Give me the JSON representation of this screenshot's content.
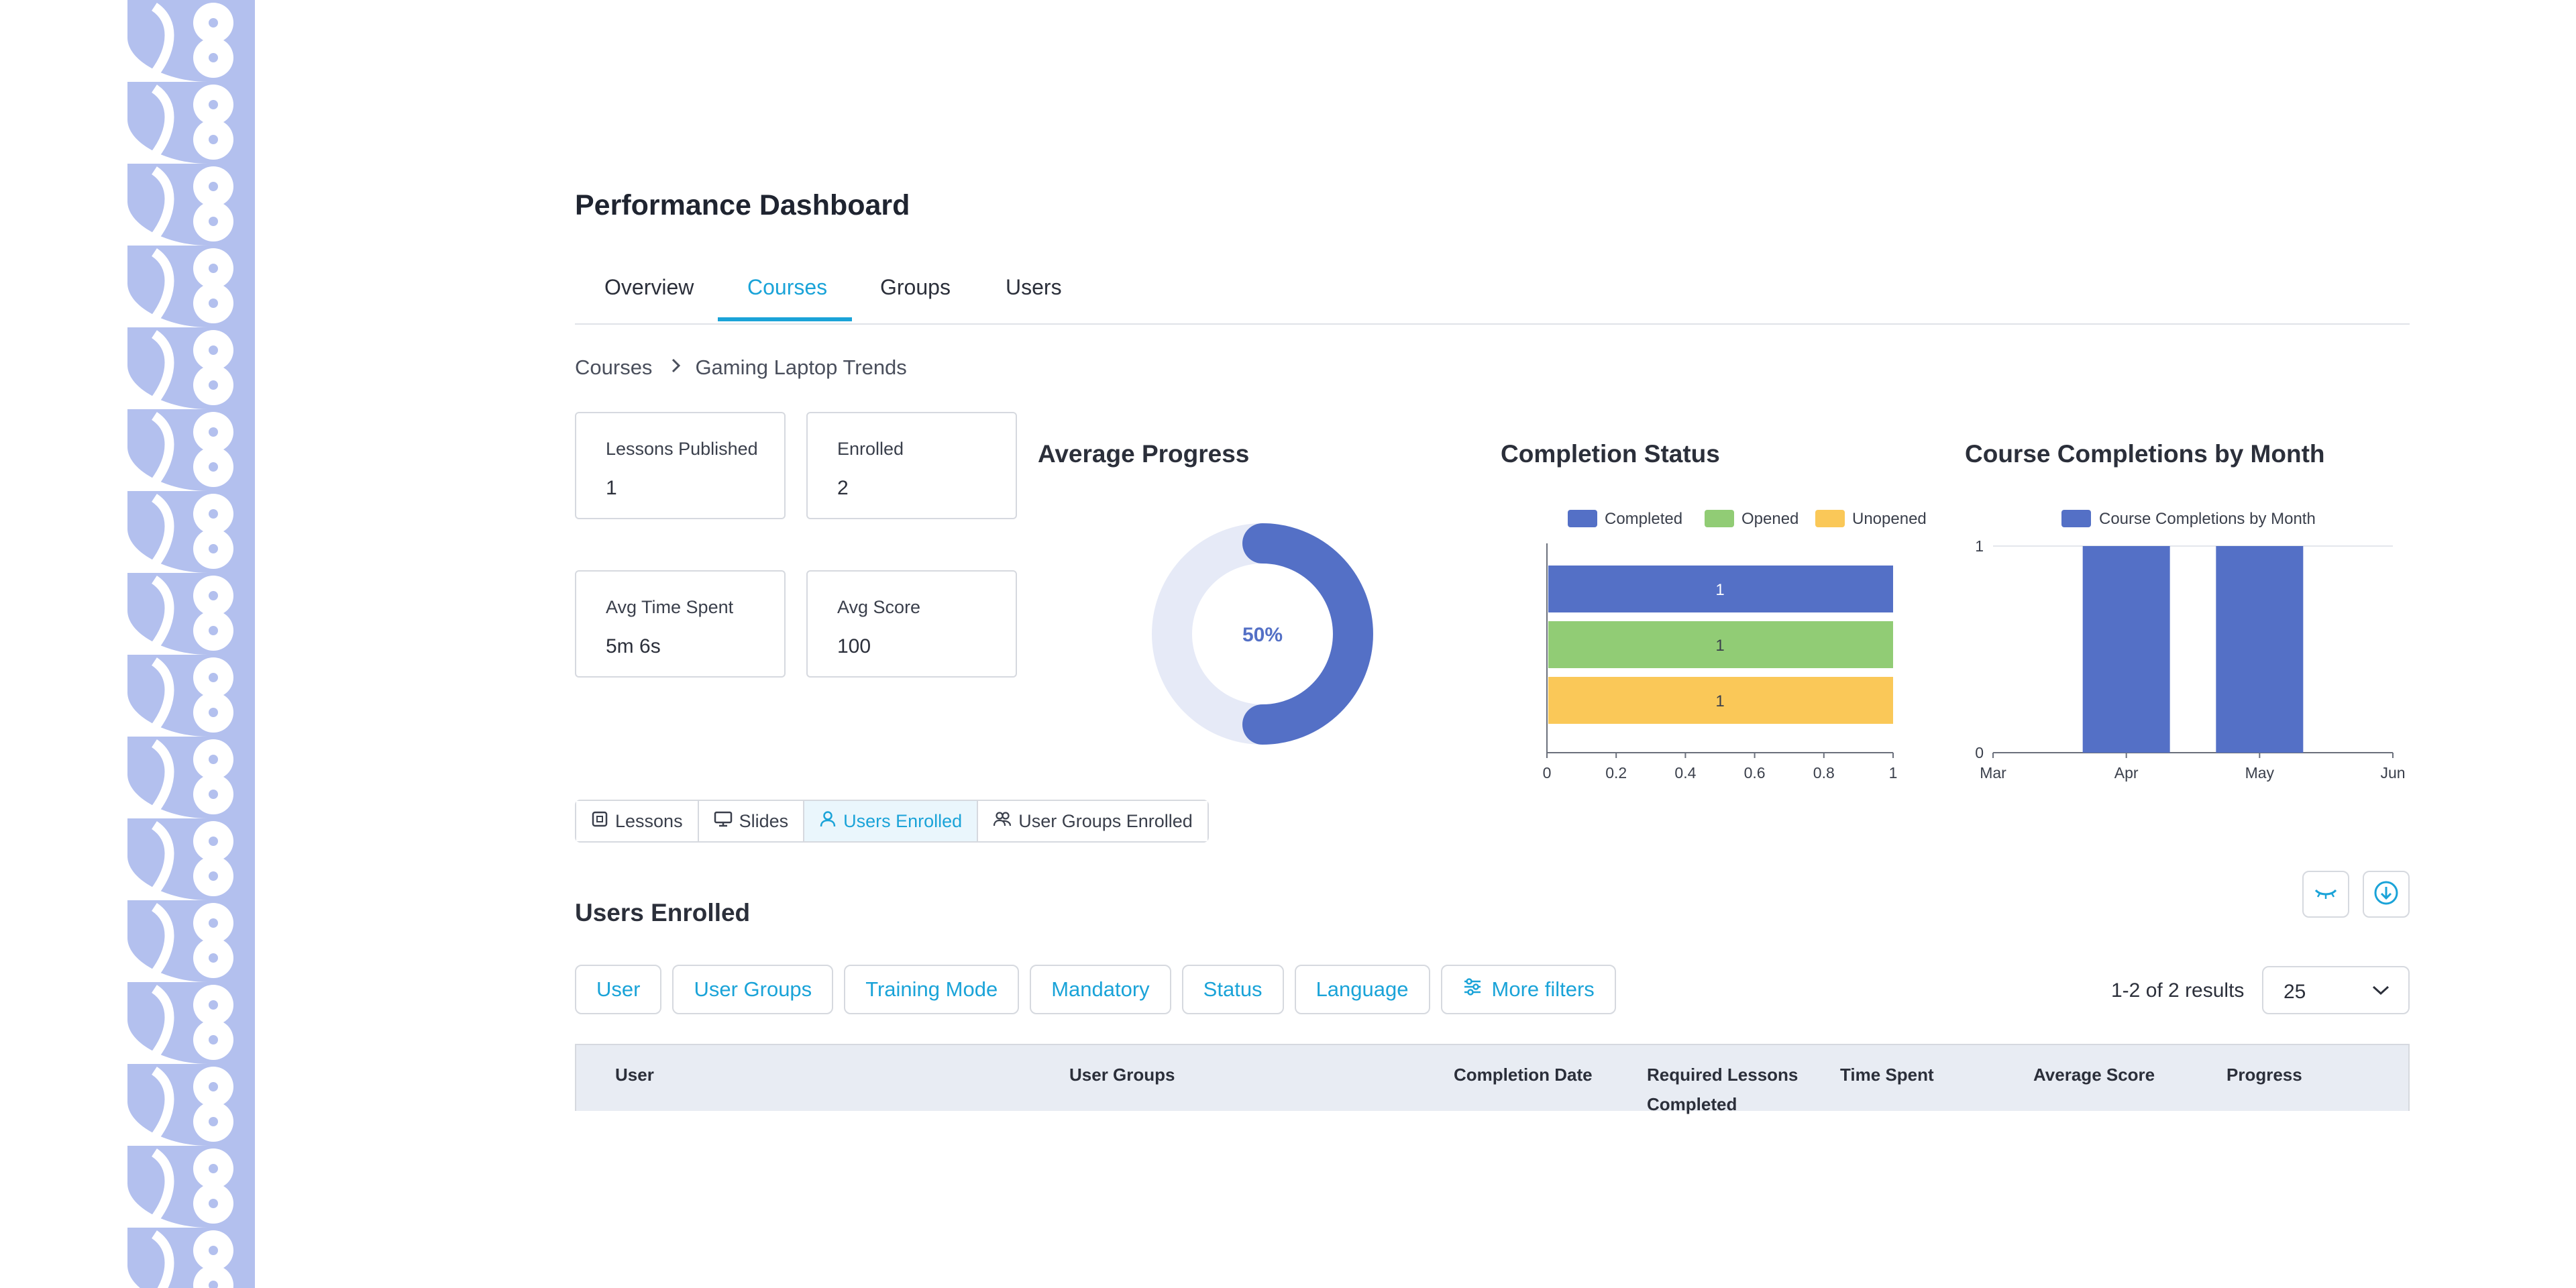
{
  "page_title": "Performance Dashboard",
  "tabs": [
    {
      "label": "Overview",
      "active": false
    },
    {
      "label": "Courses",
      "active": true
    },
    {
      "label": "Groups",
      "active": false
    },
    {
      "label": "Users",
      "active": false
    }
  ],
  "breadcrumb": {
    "root": "Courses",
    "current": "Gaming Laptop Trends"
  },
  "stats": {
    "lessons_published": {
      "label": "Lessons Published",
      "value": "1"
    },
    "enrolled": {
      "label": "Enrolled",
      "value": "2"
    },
    "avg_time_spent": {
      "label": "Avg Time Spent",
      "value": "5m 6s"
    },
    "avg_score": {
      "label": "Avg Score",
      "value": "100"
    }
  },
  "chart_data": [
    {
      "type": "pie",
      "title": "Average Progress",
      "values": [
        50,
        50
      ],
      "center_label": "50%",
      "colors": [
        "#5470c6",
        "#e6eaf7"
      ]
    },
    {
      "type": "bar",
      "orientation": "horizontal",
      "title": "Completion Status",
      "legend": [
        "Completed",
        "Opened",
        "Unopened"
      ],
      "colors": [
        "#5470c6",
        "#91cc75",
        "#fac858"
      ],
      "categories": [
        "Completed",
        "Opened",
        "Unopened"
      ],
      "values": [
        1,
        1,
        1
      ],
      "data_labels": [
        "1",
        "1",
        "1"
      ],
      "xlim": [
        0,
        1
      ],
      "xticks": [
        "0",
        "0.2",
        "0.4",
        "0.6",
        "0.8",
        "1"
      ],
      "legend_position": "top"
    },
    {
      "type": "bar",
      "title": "Course Completions by Month",
      "series": [
        {
          "name": "Course Completions by Month",
          "values": [
            0,
            1,
            1,
            0
          ]
        }
      ],
      "categories": [
        "Mar",
        "Apr",
        "May",
        "Jun"
      ],
      "ylim": [
        0,
        1
      ],
      "yticks": [
        "0",
        "1"
      ],
      "color": "#5470c6",
      "grid": true,
      "legend_position": "top"
    }
  ],
  "subtabs": [
    {
      "label": "Lessons",
      "icon": "lessons-icon",
      "active": false
    },
    {
      "label": "Slides",
      "icon": "slides-icon",
      "active": false
    },
    {
      "label": "Users Enrolled",
      "icon": "user-icon",
      "active": true
    },
    {
      "label": "User Groups Enrolled",
      "icon": "user-groups-icon",
      "active": false
    }
  ],
  "section_title": "Users Enrolled",
  "filters": [
    "User",
    "User Groups",
    "Training Mode",
    "Mandatory",
    "Status",
    "Language",
    "More filters"
  ],
  "results_text": "1-2 of 2 results",
  "page_size": "25",
  "table_headers": [
    "User",
    "User Groups",
    "Completion Date",
    "Required Lessons Completed",
    "Time Spent",
    "Average Score",
    "Progress"
  ],
  "colors": {
    "accent": "#1aa3d8",
    "chart_blue": "#5470c6",
    "chart_green": "#91cc75",
    "chart_yellow": "#fac858"
  }
}
